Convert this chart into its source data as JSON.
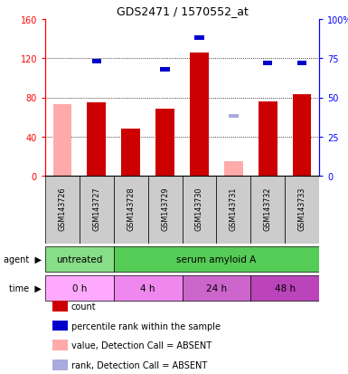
{
  "title": "GDS2471 / 1570552_at",
  "samples": [
    "GSM143726",
    "GSM143727",
    "GSM143728",
    "GSM143729",
    "GSM143730",
    "GSM143731",
    "GSM143732",
    "GSM143733"
  ],
  "count_values": [
    0,
    75,
    48,
    68,
    126,
    0,
    76,
    83
  ],
  "rank_values": [
    0,
    73,
    0,
    68,
    88,
    0,
    72,
    72
  ],
  "absent_count_values": [
    73,
    0,
    0,
    0,
    0,
    15,
    0,
    0
  ],
  "absent_rank_values": [
    0,
    0,
    0,
    0,
    0,
    38,
    0,
    0
  ],
  "count_color": "#cc0000",
  "rank_color": "#0000cc",
  "absent_count_color": "#ffaaaa",
  "absent_rank_color": "#aaaadd",
  "ylim_left": [
    0,
    160
  ],
  "ylim_right": [
    0,
    100
  ],
  "yticks_left": [
    0,
    40,
    80,
    120,
    160
  ],
  "yticks_right": [
    0,
    25,
    50,
    75,
    100
  ],
  "ytick_labels_left": [
    "0",
    "40",
    "80",
    "120",
    "160"
  ],
  "ytick_labels_right": [
    "0",
    "25",
    "50",
    "75",
    "100%"
  ],
  "agent_labels": [
    {
      "text": "untreated",
      "start": 0,
      "end": 2,
      "color": "#88dd88"
    },
    {
      "text": "serum amyloid A",
      "start": 2,
      "end": 8,
      "color": "#55cc55"
    }
  ],
  "time_labels": [
    {
      "text": "0 h",
      "start": 0,
      "end": 2,
      "color": "#ffaaff"
    },
    {
      "text": "4 h",
      "start": 2,
      "end": 4,
      "color": "#ee88ee"
    },
    {
      "text": "24 h",
      "start": 4,
      "end": 6,
      "color": "#cc66cc"
    },
    {
      "text": "48 h",
      "start": 6,
      "end": 8,
      "color": "#bb44bb"
    }
  ],
  "legend_items": [
    {
      "label": "count",
      "color": "#cc0000"
    },
    {
      "label": "percentile rank within the sample",
      "color": "#0000cc"
    },
    {
      "label": "value, Detection Call = ABSENT",
      "color": "#ffaaaa"
    },
    {
      "label": "rank, Detection Call = ABSENT",
      "color": "#aaaadd"
    }
  ],
  "chart_bg": "#ffffff",
  "bar_width": 0.55
}
